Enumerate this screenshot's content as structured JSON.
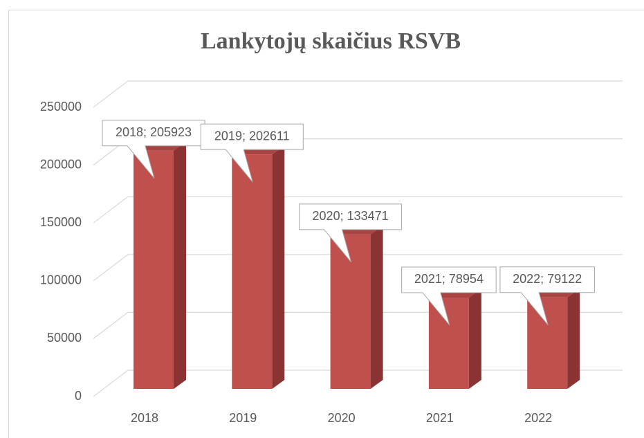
{
  "chart_data": {
    "type": "bar3d",
    "title": "Lankytojų skaičius RSVB",
    "categories": [
      "2018",
      "2019",
      "2020",
      "2021",
      "2022"
    ],
    "values": [
      205923,
      202611,
      133471,
      78954,
      79122
    ],
    "value_labels": [
      "2018; 205923",
      "2019; 202611",
      "2020; 133471",
      "2021; 78954",
      "2022; 79122"
    ],
    "color": "#c0504d",
    "ylim": [
      0,
      250000
    ],
    "yticks": [
      0,
      50000,
      100000,
      150000,
      200000,
      250000
    ],
    "grid": true
  }
}
